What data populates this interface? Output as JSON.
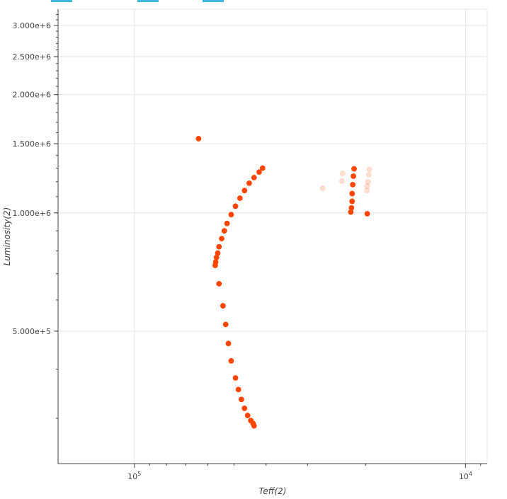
{
  "tabs": [
    {
      "label": ""
    },
    {
      "label": ""
    },
    {
      "label": ""
    }
  ],
  "colors": {
    "points": "#ff4500",
    "grid": "#e5e5e5",
    "axis": "#444444",
    "tab_accent": "#3fb8e0"
  },
  "chart_data": {
    "type": "scatter",
    "xlabel": "Teff(2)",
    "ylabel": "Luminosity(2)",
    "x_scale": "log",
    "x_reversed": true,
    "y_scale": "log",
    "grid": true,
    "xlim": [
      170000,
      8600
    ],
    "ylim": [
      230000,
      3300000
    ],
    "x_ticks": [
      {
        "value": 100000,
        "label": "10^5"
      },
      {
        "value": 10000,
        "label": "10^4"
      }
    ],
    "y_ticks": [
      {
        "value": 500000,
        "label": "5.000e+5"
      },
      {
        "value": 1000000,
        "label": "1.000e+6"
      },
      {
        "value": 1500000,
        "label": "1.500e+6"
      },
      {
        "value": 2000000,
        "label": "2.000e+6"
      },
      {
        "value": 2500000,
        "label": "2.500e+6"
      },
      {
        "value": 3000000,
        "label": "3.000e+6"
      }
    ],
    "series": [
      {
        "opacity": 1.0,
        "points": [
          [
            64000,
            1545000
          ],
          [
            41000,
            1300000
          ],
          [
            42000,
            1270000
          ],
          [
            43500,
            1230000
          ],
          [
            45000,
            1190000
          ],
          [
            46500,
            1140000
          ],
          [
            48000,
            1090000
          ],
          [
            49500,
            1040000
          ],
          [
            51000,
            990000
          ],
          [
            52500,
            940000
          ],
          [
            53500,
            900000
          ],
          [
            54500,
            860000
          ],
          [
            55500,
            820000
          ],
          [
            56000,
            790000
          ],
          [
            56500,
            770000
          ],
          [
            56800,
            750000
          ],
          [
            57000,
            735000
          ],
          [
            55500,
            660000
          ],
          [
            54000,
            580000
          ],
          [
            53000,
            520000
          ],
          [
            52000,
            465000
          ],
          [
            51000,
            420000
          ],
          [
            49500,
            380000
          ],
          [
            48500,
            355000
          ],
          [
            47500,
            335000
          ],
          [
            46500,
            318000
          ],
          [
            45500,
            305000
          ],
          [
            44500,
            296000
          ],
          [
            43800,
            291000
          ],
          [
            43500,
            287000
          ],
          [
            21700,
            1295000
          ],
          [
            21800,
            1240000
          ],
          [
            21900,
            1180000
          ],
          [
            22000,
            1120000
          ],
          [
            22000,
            1070000
          ],
          [
            22100,
            1030000
          ],
          [
            22200,
            1005000
          ],
          [
            19800,
            995000
          ]
        ]
      },
      {
        "opacity": 0.18,
        "points": [
          [
            27000,
            1155000
          ],
          [
            23500,
            1260000
          ],
          [
            23600,
            1205000
          ],
          [
            19500,
            1290000
          ],
          [
            19600,
            1250000
          ],
          [
            19700,
            1200000
          ],
          [
            19800,
            1170000
          ],
          [
            19850,
            1140000
          ]
        ]
      }
    ]
  }
}
